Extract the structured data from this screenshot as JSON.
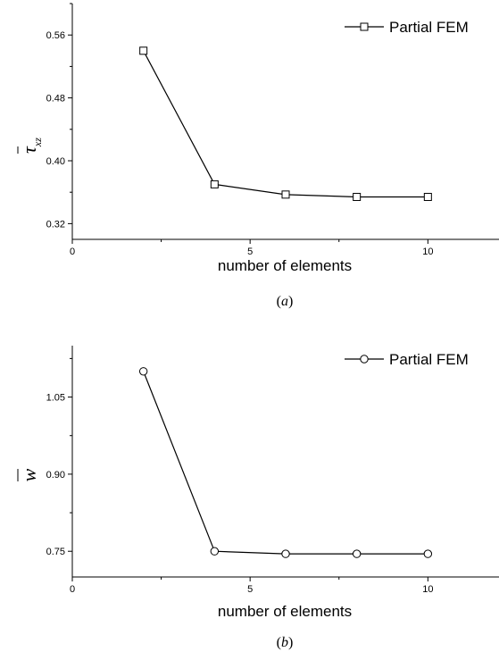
{
  "chart_data": [
    {
      "type": "line",
      "xlabel": "number of elements",
      "ylabel": "τ",
      "ylabel_subscript": "xz",
      "caption": "(a)",
      "caption_letter": "a",
      "xlim": [
        0,
        12
      ],
      "ylim": [
        0.3,
        0.6
      ],
      "xticks": [
        0,
        5,
        10
      ],
      "yticks": [
        0.32,
        0.4,
        0.48,
        0.56
      ],
      "ytick_labels": [
        "0.32",
        "0.40",
        "0.48",
        "0.56"
      ],
      "legend_position": "top-right",
      "series": [
        {
          "name": "Partial FEM",
          "marker": "square",
          "color": "#000000",
          "x": [
            2,
            4,
            6,
            8,
            10
          ],
          "y": [
            0.54,
            0.37,
            0.357,
            0.354,
            0.354
          ]
        }
      ]
    },
    {
      "type": "line",
      "xlabel": "number of elements",
      "ylabel": "w",
      "caption": "(b)",
      "caption_letter": "b",
      "xlim": [
        0,
        12
      ],
      "ylim": [
        0.7,
        1.15
      ],
      "xticks": [
        0,
        5,
        10
      ],
      "yticks": [
        0.75,
        0.9,
        1.05
      ],
      "ytick_labels": [
        "0.75",
        "0.90",
        "1.05"
      ],
      "legend_position": "top-right",
      "series": [
        {
          "name": "Partial FEM",
          "marker": "circle",
          "color": "#000000",
          "x": [
            2,
            4,
            6,
            8,
            10
          ],
          "y": [
            1.1,
            0.75,
            0.745,
            0.745,
            0.745
          ]
        }
      ]
    }
  ]
}
